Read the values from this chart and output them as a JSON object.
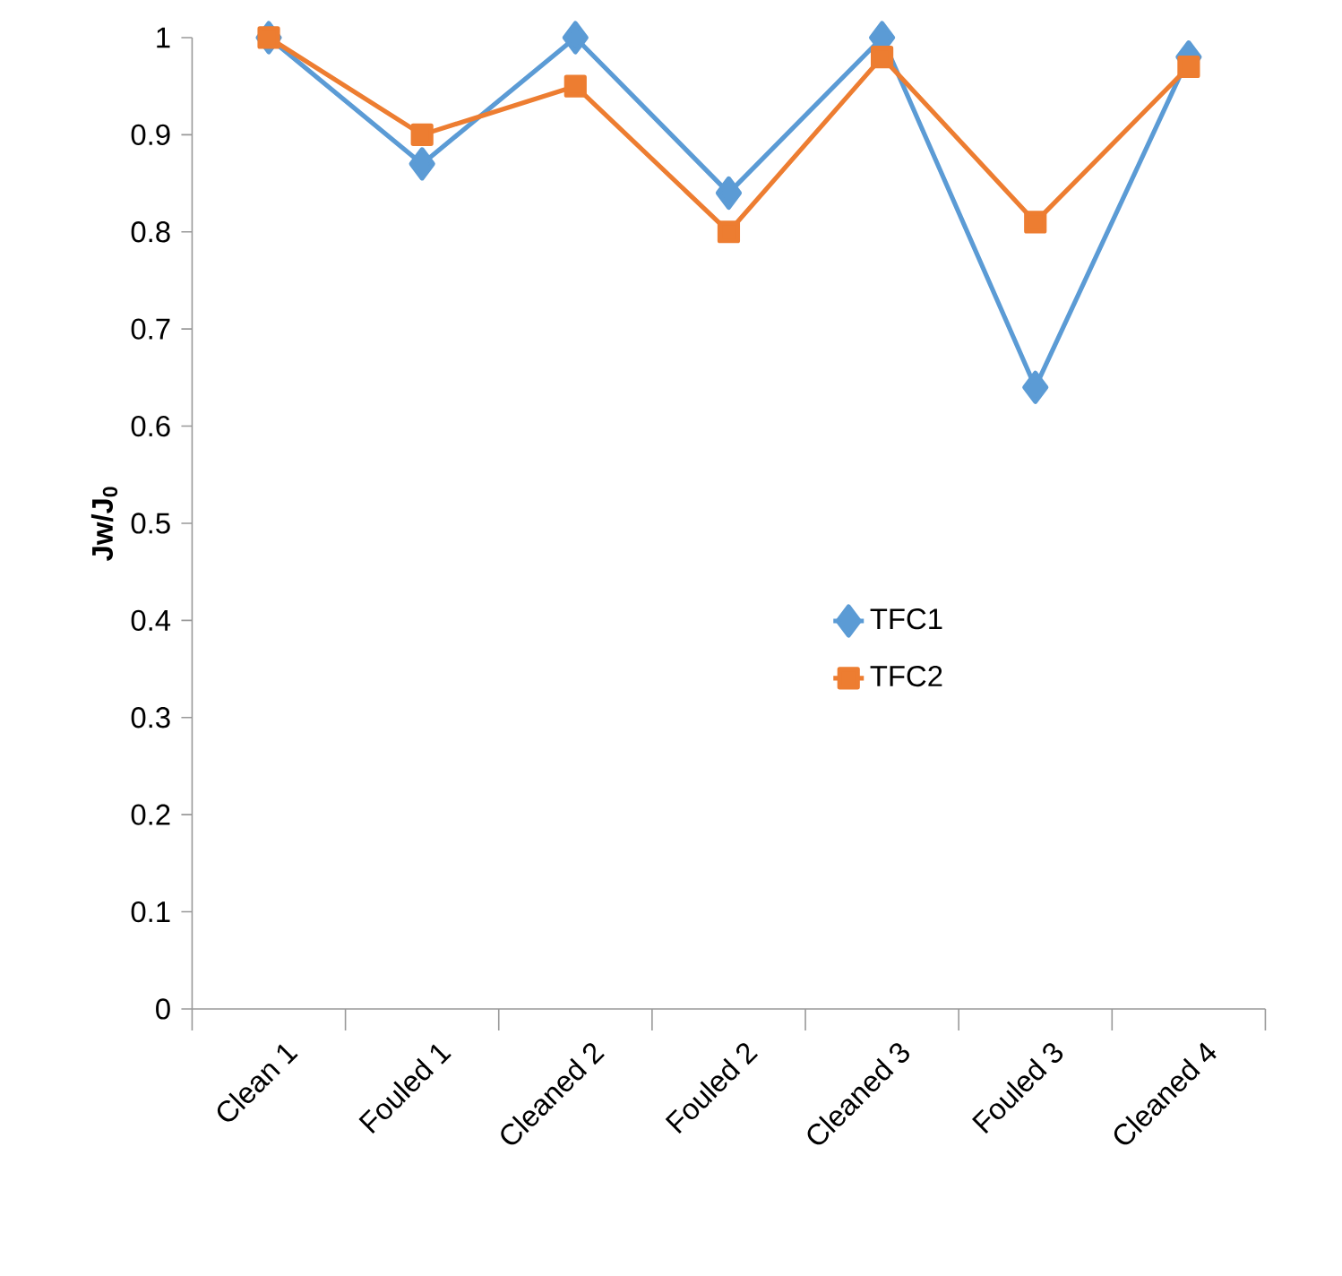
{
  "chart_data": {
    "type": "line",
    "ylabel": "Jw/J$_{0}$",
    "categories": [
      "Clean 1",
      "Fouled 1",
      "Cleaned 2",
      "Fouled 2",
      "Cleaned 3",
      "Fouled 3",
      "Cleaned 4"
    ],
    "series": [
      {
        "name": "TFC1",
        "color": "#5b9bd5",
        "marker": "diamond",
        "values": [
          1.0,
          0.87,
          1.0,
          0.84,
          1.0,
          0.64,
          0.98
        ]
      },
      {
        "name": "TFC2",
        "color": "#ed7d31",
        "marker": "square",
        "values": [
          1.0,
          0.9,
          0.95,
          0.8,
          0.98,
          0.81,
          0.97
        ]
      }
    ],
    "ylim": [
      0,
      1
    ],
    "yticks": [
      0,
      0.1,
      0.2,
      0.3,
      0.4,
      0.5,
      0.6,
      0.7,
      0.8,
      0.9,
      1
    ],
    "grid": false,
    "legend": "right",
    "line_style": "solid"
  }
}
